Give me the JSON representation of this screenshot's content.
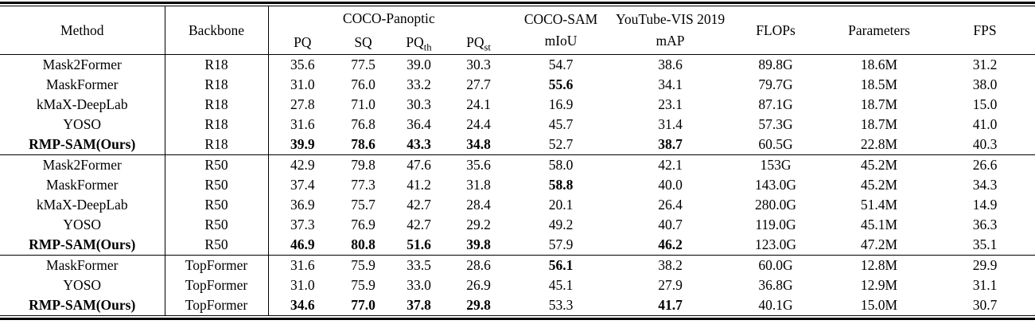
{
  "colors": {
    "text": "#000000",
    "background": "#ffffff",
    "rule": "#000000"
  },
  "table": {
    "header": {
      "method": "Method",
      "backbone": "Backbone",
      "coco_panoptic_group": "COCO-Panoptic",
      "subcols": [
        {
          "base": "PQ",
          "sub": ""
        },
        {
          "base": "SQ",
          "sub": ""
        },
        {
          "base": "PQ",
          "sub": "th"
        },
        {
          "base": "PQ",
          "sub": "st"
        }
      ],
      "coco_sam_line1": "COCO-SAM",
      "coco_sam_line2": "mIoU",
      "ytvis_line1": "YouTube-VIS 2019",
      "ytvis_line2": "mAP",
      "flops": "FLOPs",
      "parameters": "Parameters",
      "fps": "FPS"
    },
    "col_keys": [
      "method",
      "backbone",
      "pq",
      "sq",
      "pq-th",
      "pq-st",
      "miou",
      "map",
      "flops",
      "parameters",
      "fps"
    ],
    "rows": [
      {
        "group_start": false,
        "bold": [],
        "cells": [
          "Mask2Former",
          "R18",
          "35.6",
          "77.5",
          "39.0",
          "30.3",
          "54.7",
          "38.6",
          "89.8G",
          "18.6M",
          "31.2"
        ]
      },
      {
        "group_start": false,
        "bold": [
          6
        ],
        "cells": [
          "MaskFormer",
          "R18",
          "31.0",
          "76.0",
          "33.2",
          "27.7",
          "55.6",
          "34.1",
          "79.7G",
          "18.5M",
          "38.0"
        ]
      },
      {
        "group_start": false,
        "bold": [],
        "cells": [
          "kMaX-DeepLab",
          "R18",
          "27.8",
          "71.0",
          "30.3",
          "24.1",
          "16.9",
          "23.1",
          "87.1G",
          "18.7M",
          "15.0"
        ]
      },
      {
        "group_start": false,
        "bold": [],
        "cells": [
          "YOSO",
          "R18",
          "31.6",
          "76.8",
          "36.4",
          "24.4",
          "45.7",
          "31.4",
          "57.3G",
          "18.7M",
          "41.0"
        ]
      },
      {
        "group_start": false,
        "bold": [
          0,
          2,
          3,
          4,
          5,
          7
        ],
        "cells": [
          "RMP-SAM(Ours)",
          "R18",
          "39.9",
          "78.6",
          "43.3",
          "34.8",
          "52.7",
          "38.7",
          "60.5G",
          "22.8M",
          "40.3"
        ]
      },
      {
        "group_start": true,
        "bold": [],
        "cells": [
          "Mask2Former",
          "R50",
          "42.9",
          "79.8",
          "47.6",
          "35.6",
          "58.0",
          "42.1",
          "153G",
          "45.2M",
          "26.6"
        ]
      },
      {
        "group_start": false,
        "bold": [
          6
        ],
        "cells": [
          "MaskFormer",
          "R50",
          "37.4",
          "77.3",
          "41.2",
          "31.8",
          "58.8",
          "40.0",
          "143.0G",
          "45.2M",
          "34.3"
        ]
      },
      {
        "group_start": false,
        "bold": [],
        "cells": [
          "kMaX-DeepLab",
          "R50",
          "36.9",
          "75.7",
          "42.7",
          "28.4",
          "20.1",
          "26.4",
          "280.0G",
          "51.4M",
          "14.9"
        ]
      },
      {
        "group_start": false,
        "bold": [],
        "cells": [
          "YOSO",
          "R50",
          "37.3",
          "76.9",
          "42.7",
          "29.2",
          "49.2",
          "40.7",
          "119.0G",
          "45.1M",
          "36.3"
        ]
      },
      {
        "group_start": false,
        "bold": [
          0,
          2,
          3,
          4,
          5,
          7
        ],
        "cells": [
          "RMP-SAM(Ours)",
          "R50",
          "46.9",
          "80.8",
          "51.6",
          "39.8",
          "57.9",
          "46.2",
          "123.0G",
          "47.2M",
          "35.1"
        ]
      },
      {
        "group_start": true,
        "bold": [
          6
        ],
        "cells": [
          "MaskFormer",
          "TopFormer",
          "31.6",
          "75.9",
          "33.5",
          "28.6",
          "56.1",
          "38.2",
          "60.0G",
          "12.8M",
          "29.9"
        ]
      },
      {
        "group_start": false,
        "bold": [],
        "cells": [
          "YOSO",
          "TopFormer",
          "31.0",
          "75.9",
          "33.0",
          "26.9",
          "45.1",
          "27.9",
          "36.8G",
          "12.9M",
          "31.1"
        ]
      },
      {
        "group_start": false,
        "bold": [
          0,
          2,
          3,
          4,
          5,
          7
        ],
        "cells": [
          "RMP-SAM(Ours)",
          "TopFormer",
          "34.6",
          "77.0",
          "37.8",
          "29.8",
          "53.3",
          "41.7",
          "40.1G",
          "15.0M",
          "30.7"
        ]
      }
    ]
  }
}
